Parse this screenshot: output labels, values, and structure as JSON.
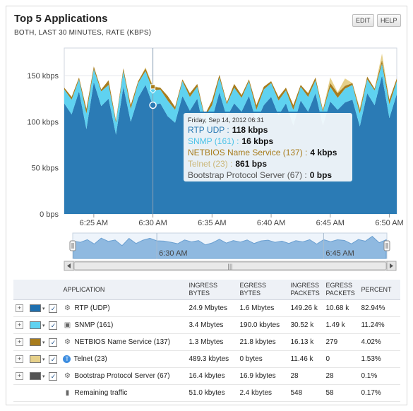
{
  "header": {
    "title": "Top 5 Applications",
    "subtitle": "BOTH, LAST 30 MINUTES, RATE (KBPS)",
    "edit_label": "EDIT",
    "help_label": "HELP"
  },
  "chart_data": {
    "type": "area",
    "stacked": true,
    "y_ticks": [
      "150 kbps",
      "100 kbps",
      "50 kbps",
      "0 bps"
    ],
    "y_tick_values": [
      150,
      100,
      50,
      0
    ],
    "ylim": [
      0,
      180
    ],
    "x_ticks": [
      "6:25 AM",
      "6:30 AM",
      "6:35 AM",
      "6:40 AM",
      "6:45 AM",
      "6:50 AM"
    ],
    "x_tick_minutes": [
      4,
      12,
      20,
      28,
      36,
      44
    ],
    "x_range_minutes": [
      0,
      45
    ],
    "x": [
      0,
      1,
      2,
      3,
      4,
      5,
      6,
      7,
      8,
      9,
      10,
      11,
      12,
      13,
      14,
      15,
      16,
      17,
      18,
      19,
      20,
      21,
      22,
      23,
      24,
      25,
      26,
      27,
      28,
      29,
      30,
      31,
      32,
      33,
      34,
      35,
      36,
      37,
      38,
      39,
      40,
      41,
      42,
      43,
      44,
      45
    ],
    "series": [
      {
        "name": "RTP (UDP)",
        "color": "#2b7bb5",
        "values": [
          120,
          108,
          133,
          92,
          143,
          117,
          125,
          86,
          138,
          100,
          126,
          140,
          118,
          120,
          106,
          99,
          128,
          112,
          125,
          88,
          103,
          132,
          105,
          120,
          111,
          128,
          100,
          118,
          127,
          107,
          120,
          96,
          123,
          111,
          131,
          96,
          122,
          113,
          121,
          124,
          95,
          131,
          118,
          150,
          104,
          130
        ]
      },
      {
        "name": "SNMP (161)",
        "color": "#5fd2f0",
        "values": [
          15,
          16,
          13,
          17,
          14,
          16,
          15,
          13,
          17,
          14,
          16,
          15,
          16,
          15,
          17,
          14,
          16,
          15,
          13,
          17,
          15,
          16,
          14,
          17,
          15,
          16,
          13,
          17,
          15,
          16,
          14,
          17,
          15,
          16,
          14,
          15,
          16,
          13,
          15,
          16,
          14,
          15,
          16,
          13,
          15,
          14
        ]
      },
      {
        "name": "NETBIOS Name Service (137)",
        "color": "#a87c1c",
        "values": [
          2,
          3,
          2,
          5,
          3,
          2,
          5,
          2,
          3,
          4,
          2,
          3,
          4,
          2,
          5,
          3,
          2,
          4,
          3,
          2,
          5,
          3,
          2,
          4,
          3,
          2,
          5,
          3,
          2,
          4,
          3,
          5,
          2,
          4,
          3,
          2,
          4,
          5,
          3,
          2,
          4,
          3,
          2,
          4,
          5,
          3
        ]
      },
      {
        "name": "Telnet (23)",
        "color": "#e6d08a",
        "values": [
          0,
          0,
          0,
          0,
          0,
          0,
          0,
          0,
          0,
          0,
          0,
          1,
          1,
          0,
          0,
          0,
          0,
          0,
          0,
          0,
          0,
          0,
          0,
          0,
          0,
          0,
          0,
          0,
          0,
          0,
          0,
          0,
          0,
          0,
          0,
          0,
          6,
          1,
          8,
          0,
          2,
          0,
          0,
          7,
          0,
          0
        ]
      },
      {
        "name": "Bootstrap Protocol Server (67)",
        "color": "#555555",
        "values": [
          0,
          0,
          0,
          0,
          0,
          0,
          0,
          0,
          0,
          0,
          0,
          0,
          0,
          0,
          0,
          0,
          0,
          0,
          0,
          0,
          0,
          0,
          0,
          0,
          0,
          0,
          0,
          0,
          0,
          0,
          0,
          0,
          0,
          0,
          0,
          0,
          0,
          0,
          0,
          0,
          0,
          0,
          0,
          0,
          0,
          0
        ]
      }
    ],
    "hover_minute": 12,
    "tooltip": {
      "timestamp": "Friday, Sep 14, 2012 06:31",
      "rows": [
        {
          "label": "RTP UDP :",
          "value": "118 kbps",
          "color": "#2b7bb5"
        },
        {
          "label": "SNMP (161) :",
          "value": "16 kbps",
          "color": "#4cc3e8"
        },
        {
          "label": "NETBIOS Name Service (137) :",
          "value": "4 kbps",
          "color": "#a87c1c"
        },
        {
          "label": "Telnet (23) :",
          "value": "861 bps",
          "color": "#cbb779"
        },
        {
          "label": "Bootstrap Protocol Server (67) :",
          "value": "0 bps",
          "color": "#555555"
        }
      ]
    },
    "navigator": {
      "labels": [
        "6:30 AM",
        "6:45 AM"
      ],
      "label_minutes": [
        12,
        36
      ],
      "scroll_label": "|||"
    }
  },
  "table": {
    "columns": [
      "APPLICATION",
      "INGRESS BYTES",
      "EGRESS BYTES",
      "INGRESS PACKETS",
      "EGRESS PACKETS",
      "PERCENT"
    ],
    "rows": [
      {
        "color": "#1f6fae",
        "icon": "gears-icon",
        "glyph": "⚙",
        "name": "RTP (UDP)",
        "ingress_bytes": "24.9 Mbytes",
        "egress_bytes": "1.6 Mbytes",
        "ingress_packets": "149.26 k",
        "egress_packets": "10.68 k",
        "percent": "82.94%"
      },
      {
        "color": "#5fd2f0",
        "icon": "monitor-icon",
        "glyph": "▣",
        "name": "SNMP (161)",
        "ingress_bytes": "3.4 Mbytes",
        "egress_bytes": "190.0 kbytes",
        "ingress_packets": "30.52 k",
        "egress_packets": "1.49 k",
        "percent": "11.24%"
      },
      {
        "color": "#a87c1c",
        "icon": "gears-icon",
        "glyph": "⚙",
        "name": "NETBIOS Name Service (137)",
        "ingress_bytes": "1.3 Mbytes",
        "egress_bytes": "21.8 kbytes",
        "ingress_packets": "16.13 k",
        "egress_packets": "279",
        "percent": "4.02%"
      },
      {
        "color": "#e6d08a",
        "icon": "telnet-icon",
        "glyph": "T",
        "name": "Telnet (23)",
        "ingress_bytes": "489.3 kbytes",
        "egress_bytes": "0 bytes",
        "ingress_packets": "11.46 k",
        "egress_packets": "0",
        "percent": "1.53%"
      },
      {
        "color": "#555555",
        "icon": "gears-icon",
        "glyph": "⚙",
        "name": "Bootstrap Protocol Server (67)",
        "ingress_bytes": "16.4 kbytes",
        "egress_bytes": "16.9 kbytes",
        "ingress_packets": "28",
        "egress_packets": "28",
        "percent": "0.1%"
      }
    ],
    "remaining": {
      "icon": "bar-chart-icon",
      "glyph": "▮",
      "name": "Remaining traffic",
      "ingress_bytes": "51.0 kbytes",
      "egress_bytes": "2.4 kbytes",
      "ingress_packets": "548",
      "egress_packets": "58",
      "percent": "0.17%"
    }
  }
}
